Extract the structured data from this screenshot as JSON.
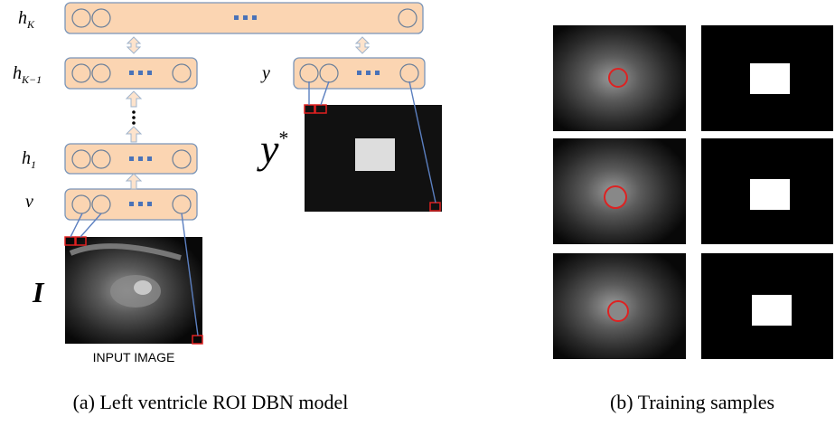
{
  "panel_a": {
    "layers": [
      {
        "label": "h",
        "subscript": "K"
      },
      {
        "label": "h",
        "subscript": "K−1"
      },
      {
        "label": "h",
        "subscript": "1"
      },
      {
        "label": "v"
      }
    ],
    "output_layer": {
      "label": "y"
    },
    "target": {
      "label": "y",
      "superscript": "*"
    },
    "input": {
      "symbol": "I",
      "caption": "INPUT IMAGE"
    },
    "caption": "(a) Left ventricle ROI DBN model"
  },
  "panel_b": {
    "caption": "(b) Training samples"
  }
}
